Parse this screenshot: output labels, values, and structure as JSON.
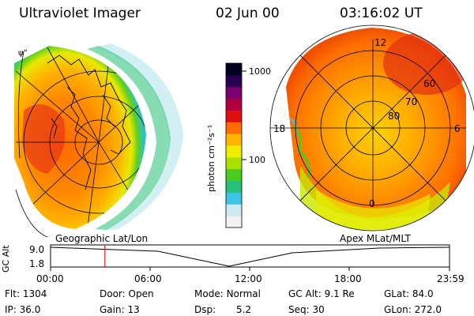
{
  "header": {
    "title": "Ultraviolet Imager",
    "date": "02 Jun 00",
    "time": "03:16:02 UT"
  },
  "left_panel": {
    "label": "Geographic Lat/Lon"
  },
  "right_panel": {
    "label": "Apex MLat/MLT",
    "mlt_labels": [
      "12",
      "18",
      "6",
      "0"
    ],
    "lat_labels": [
      "60",
      "70",
      "80"
    ]
  },
  "colorbar": {
    "unit_label": "photon cm⁻²s⁻¹",
    "ticks": [
      "1000",
      "100"
    ],
    "colors": [
      "#f2f2f2",
      "#cfe8f0",
      "#3ec4e6",
      "#25c07a",
      "#48cc1f",
      "#a8e000",
      "#f0ee00",
      "#ffb400",
      "#ff6d00",
      "#e01010",
      "#b00040",
      "#7a0070",
      "#2a0050",
      "#000020"
    ]
  },
  "altitude_plot": {
    "ylabel": "GC Alt",
    "yticks": [
      "9.0",
      "1.8"
    ],
    "xticks": [
      "00:00",
      "06:00",
      "12:00",
      "18:00",
      "23:59"
    ],
    "marker_time_hours": 3.27
  },
  "status": {
    "row1": [
      {
        "label": "Flt:",
        "value": "1304"
      },
      {
        "label": "Door:",
        "value": "Open"
      },
      {
        "label": "Mode:",
        "value": "Normal"
      },
      {
        "label": "GC Alt:",
        "value": "9.1 Re"
      },
      {
        "label": "GLat:",
        "value": "84.0"
      }
    ],
    "row2": [
      {
        "label": "IP:",
        "value": "36.0"
      },
      {
        "label": "Gain:",
        "value": "13"
      },
      {
        "label": "Dsp:",
        "value": "5.2"
      },
      {
        "label": "Seq:",
        "value": "30"
      },
      {
        "label": "GLon:",
        "value": "272.0"
      }
    ]
  }
}
